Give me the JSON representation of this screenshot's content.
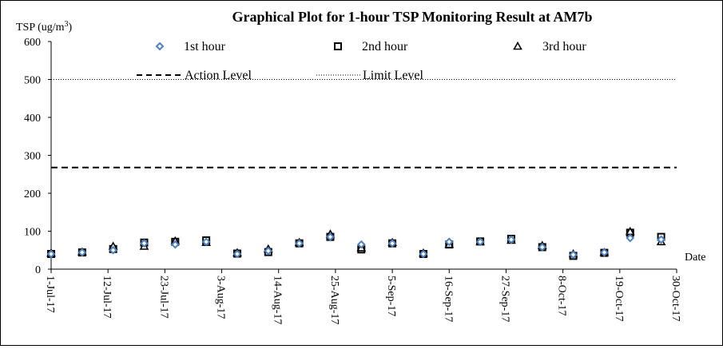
{
  "chart_data": {
    "type": "scatter",
    "title": "Graphical Plot for 1-hour TSP Monitoring Result at AM7b",
    "ylabel_main": "TSP (ug/m",
    "ylabel_sup": "3",
    "ylabel_end": ")",
    "xlabel": "Date",
    "ylim": [
      0,
      600
    ],
    "yticks": [
      "0",
      "100",
      "200",
      "300",
      "400",
      "500",
      "600"
    ],
    "xlim": [
      "2017-07-01",
      "2017-10-30"
    ],
    "xtick_labels": [
      "1-Jul-17",
      "12-Jul-17",
      "23-Jul-17",
      "3-Aug-17",
      "14-Aug-17",
      "25-Aug-17",
      "5-Sep-17",
      "16-Sep-17",
      "27-Sep-17",
      "8-Oct-17",
      "19-Oct-17",
      "30-Oct-17"
    ],
    "action_level": 268,
    "limit_level": 500,
    "legend_action": "Action Level",
    "legend_limit": "Limit Level",
    "colors": {
      "first": "#4f81bd",
      "second": "#000000",
      "third": "#000000",
      "action": "#000000",
      "limit": "#000000"
    },
    "dates": [
      "2017-07-01",
      "2017-07-07",
      "2017-07-13",
      "2017-07-19",
      "2017-07-25",
      "2017-07-31",
      "2017-08-06",
      "2017-08-12",
      "2017-08-18",
      "2017-08-24",
      "2017-08-30",
      "2017-09-05",
      "2017-09-11",
      "2017-09-16",
      "2017-09-22",
      "2017-09-28",
      "2017-10-04",
      "2017-10-10",
      "2017-10-16",
      "2017-10-21",
      "2017-10-27"
    ],
    "series": [
      {
        "name": "1st hour",
        "marker": "diamond",
        "values": [
          40,
          44,
          50,
          68,
          65,
          72,
          40,
          48,
          68,
          85,
          65,
          68,
          40,
          72,
          72,
          78,
          58,
          38,
          44,
          82,
          78
        ]
      },
      {
        "name": "2nd hour",
        "marker": "square",
        "values": [
          40,
          44,
          53,
          70,
          72,
          76,
          41,
          45,
          68,
          85,
          52,
          68,
          40,
          65,
          73,
          80,
          58,
          35,
          43,
          96,
          85
        ]
      },
      {
        "name": "3rd hour",
        "marker": "triangle",
        "values": [
          42,
          45,
          60,
          60,
          74,
          70,
          43,
          53,
          70,
          92,
          56,
          70,
          42,
          65,
          72,
          76,
          62,
          40,
          44,
          99,
          72
        ]
      }
    ]
  }
}
